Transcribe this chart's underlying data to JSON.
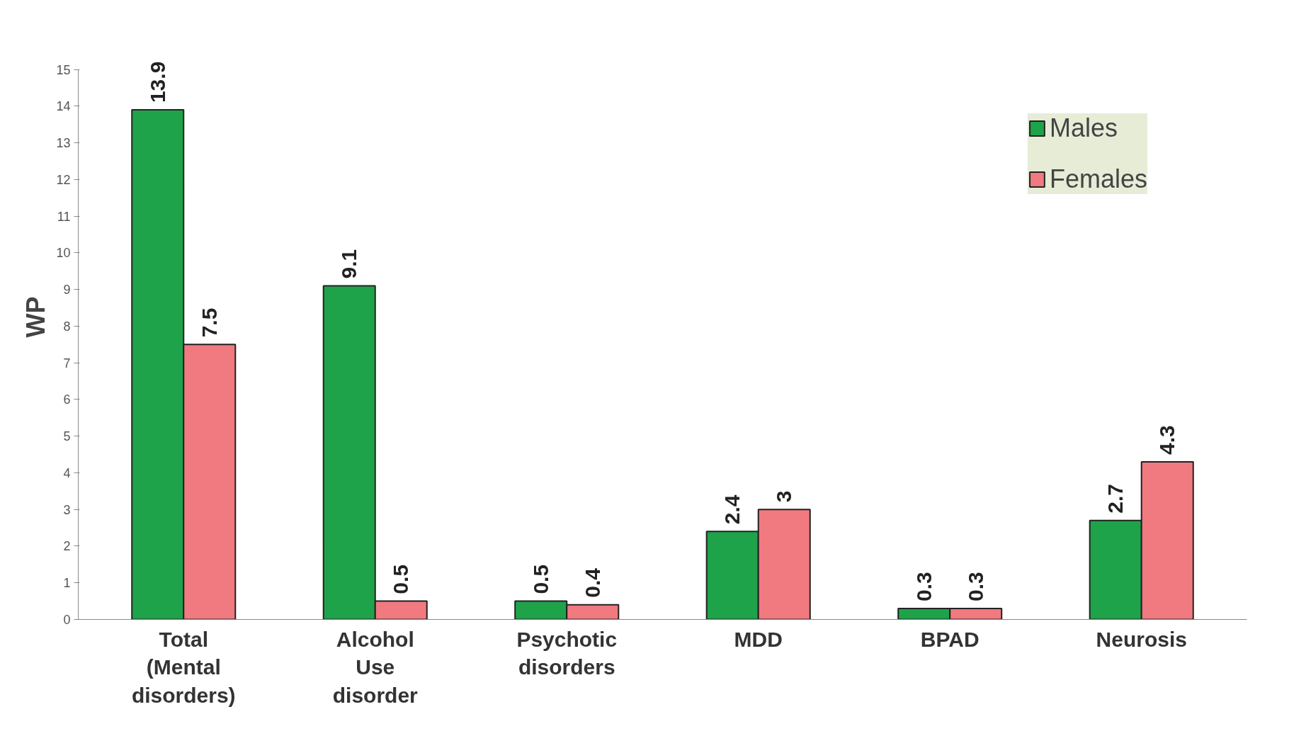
{
  "chart_data": {
    "type": "bar",
    "ylabel": "WP",
    "categories": [
      "Total (Mental disorders)",
      "Alcohol Use disorder",
      "Psychotic disorders",
      "MDD",
      "BPAD",
      "Neurosis"
    ],
    "series": [
      {
        "name": "Males",
        "color": "#1fa34a",
        "values": [
          13.9,
          9.1,
          0.5,
          2.4,
          0.3,
          2.7
        ]
      },
      {
        "name": "Females",
        "color": "#f07a80",
        "values": [
          7.5,
          0.5,
          0.4,
          3,
          0.3,
          4.3
        ]
      }
    ],
    "ylim": [
      0,
      15
    ],
    "yticks": [
      0,
      1,
      2,
      3,
      4,
      5,
      6,
      7,
      8,
      9,
      10,
      11,
      12,
      13,
      14,
      15
    ],
    "grid": false,
    "legend": "top right",
    "data_labels": true
  }
}
